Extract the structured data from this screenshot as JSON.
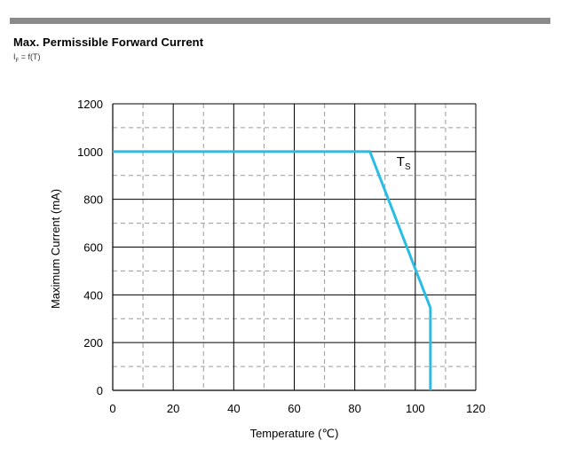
{
  "header": {
    "title": "Max. Permissible Forward Current",
    "subtitle_main": "I",
    "subtitle_sub": "F",
    "subtitle_rest": " = f(T)"
  },
  "chart_data": {
    "type": "line",
    "title": "Max. Permissible Forward Current",
    "subtitle": "IF = f(T)",
    "xlabel": "Temperature (℃)",
    "ylabel": "Maximum Current (mA)",
    "xlim": [
      0,
      120
    ],
    "ylim": [
      0,
      1200
    ],
    "xticks": [
      0,
      20,
      40,
      60,
      80,
      100,
      120
    ],
    "yticks": [
      0,
      200,
      400,
      600,
      800,
      1000,
      1200
    ],
    "grid": true,
    "series": [
      {
        "name": "TS",
        "color": "#27bde4",
        "x": [
          0,
          85,
          105,
          105
        ],
        "y": [
          1000,
          1000,
          345,
          0
        ]
      }
    ],
    "annotations": [
      {
        "text": "T",
        "sub": "S",
        "x": 95,
        "y": 940
      }
    ]
  }
}
